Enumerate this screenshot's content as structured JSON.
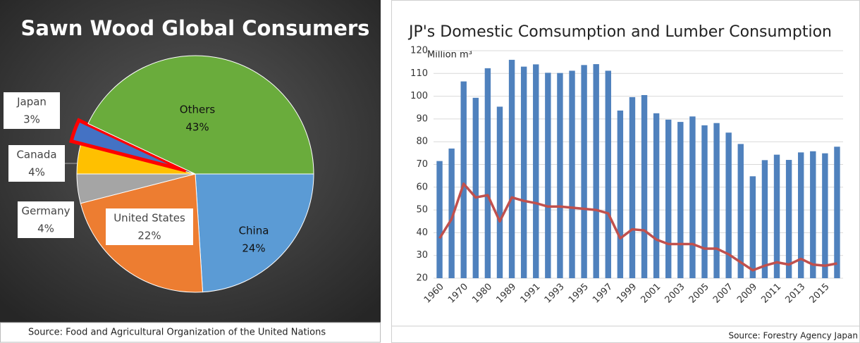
{
  "chart_data": [
    {
      "type": "pie",
      "title": "Sawn Wood Global Consumers",
      "categories": [
        "China",
        "United States",
        "Germany",
        "Canada",
        "Japan",
        "Others"
      ],
      "values": [
        24,
        22,
        4,
        4,
        3,
        43
      ],
      "value_labels": [
        "24%",
        "22%",
        "4%",
        "4%",
        "3%",
        "43%"
      ],
      "colors": [
        "#5b9bd5",
        "#ed7d31",
        "#a5a5a5",
        "#ffc000",
        "#4472c4",
        "#6aac3c"
      ],
      "highlight": "Japan",
      "highlight_color": "#ff0000",
      "source": "Source: Food and Agricultural Organization of the United Nations"
    },
    {
      "type": "bar",
      "title": "JP's Domestic Comsumption and Lumber Consumption",
      "y_label": "Million m³",
      "categories": [
        "1960",
        null,
        "1970",
        null,
        "1980",
        null,
        "1989",
        null,
        "1991",
        null,
        "1993",
        null,
        "1995",
        null,
        "1997",
        null,
        "1999",
        null,
        "2001",
        null,
        "2003",
        null,
        "2005",
        null,
        "2007",
        null,
        "2009",
        null,
        "2011",
        null,
        "2013",
        null,
        "2015",
        null
      ],
      "series": [
        {
          "type": "bar",
          "color": "#4f81bd",
          "values": [
            71.5,
            77,
            106.5,
            99.3,
            112.3,
            95.4,
            116,
            113,
            114,
            110.3,
            110.2,
            111.2,
            113.7,
            114.1,
            111.2,
            93.7,
            99.6,
            100.5,
            92.5,
            89.7,
            88.7,
            91.1,
            87.2,
            88.2,
            84,
            79,
            64.8,
            71.9,
            74.3,
            72,
            75.3,
            75.8,
            74.9,
            77.8
          ]
        },
        {
          "type": "line",
          "color": "#c0504d",
          "values": [
            37.5,
            46,
            61.5,
            55.5,
            56.5,
            45,
            55.5,
            54,
            53,
            51.5,
            51.5,
            51,
            50.5,
            50,
            48.5,
            37.5,
            41.5,
            41,
            37,
            35,
            35,
            35,
            33,
            33,
            30.5,
            27,
            23.5,
            25.5,
            27,
            26,
            28.5,
            26,
            25.5,
            26.5
          ]
        }
      ],
      "ylim": [
        20,
        120
      ],
      "yticks": [
        20,
        30,
        40,
        50,
        60,
        70,
        80,
        90,
        100,
        110,
        120
      ],
      "grid": true,
      "source": "Source: Forestry Agency Japan"
    }
  ]
}
